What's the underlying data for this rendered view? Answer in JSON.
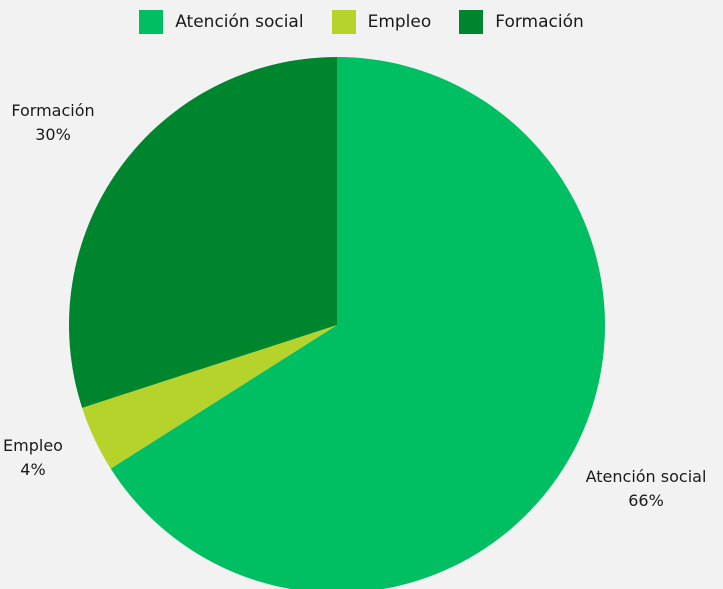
{
  "chart_data": {
    "type": "pie",
    "categories": [
      "Atención social",
      "Empleo",
      "Formación"
    ],
    "values": [
      66,
      4,
      30
    ],
    "value_labels": [
      "66%",
      "4%",
      "30%"
    ],
    "colors": [
      "#00bf63",
      "#b5d32a",
      "#00852f"
    ],
    "start_angle_deg": 0,
    "direction": "clockwise",
    "legend_position": "top-center"
  }
}
